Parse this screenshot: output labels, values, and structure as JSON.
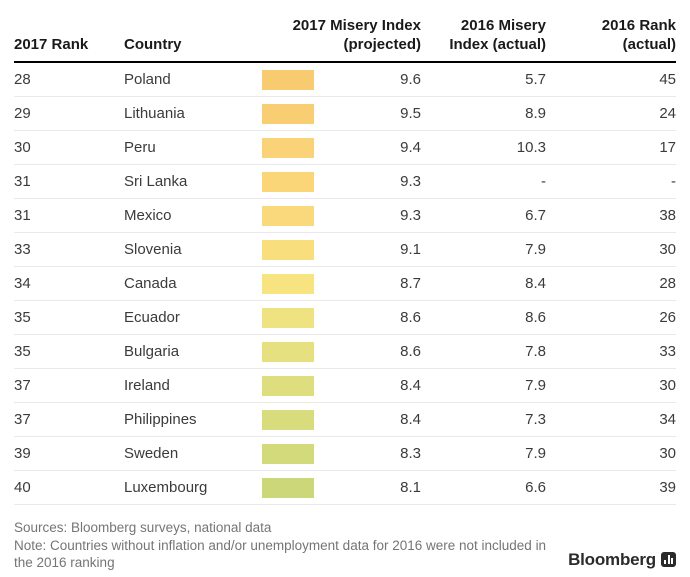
{
  "table": {
    "headers": {
      "rank2017": "2017 Rank",
      "country": "Country",
      "misery2017": "2017 Misery Index\n(projected)",
      "misery2016": "2016 Misery\nIndex (actual)",
      "rank2016": "2016 Rank\n(actual)"
    }
  },
  "chart_data": {
    "type": "table",
    "columns": [
      "2017 Rank",
      "Country",
      "2017 Misery Index (projected)",
      "2016 Misery Index (actual)",
      "2016 Rank (actual)"
    ],
    "bar_encoding": "color swatch shaded from orange (higher misery) to yellow-green (lower misery)",
    "rows": [
      {
        "rank2017": "28",
        "country": "Poland",
        "bar_color": "#f9cb70",
        "misery2017": "9.6",
        "misery2016": "5.7",
        "rank2016": "45"
      },
      {
        "rank2017": "29",
        "country": "Lithuania",
        "bar_color": "#f9ce73",
        "misery2017": "9.5",
        "misery2016": "8.9",
        "rank2016": "24"
      },
      {
        "rank2017": "30",
        "country": "Peru",
        "bar_color": "#fad277",
        "misery2017": "9.4",
        "misery2016": "10.3",
        "rank2016": "17"
      },
      {
        "rank2017": "31",
        "country": "Sri Lanka",
        "bar_color": "#fad679",
        "misery2017": "9.3",
        "misery2016": "-",
        "rank2016": "-"
      },
      {
        "rank2017": "31",
        "country": "Mexico",
        "bar_color": "#f9d97b",
        "misery2017": "9.3",
        "misery2016": "6.7",
        "rank2016": "38"
      },
      {
        "rank2017": "33",
        "country": "Slovenia",
        "bar_color": "#f9de7e",
        "misery2017": "9.1",
        "misery2016": "7.9",
        "rank2016": "30"
      },
      {
        "rank2017": "34",
        "country": "Canada",
        "bar_color": "#f7e380",
        "misery2017": "8.7",
        "misery2016": "8.4",
        "rank2016": "28"
      },
      {
        "rank2017": "35",
        "country": "Ecuador",
        "bar_color": "#efe281",
        "misery2017": "8.6",
        "misery2016": "8.6",
        "rank2016": "26"
      },
      {
        "rank2017": "35",
        "country": "Bulgaria",
        "bar_color": "#e7e080",
        "misery2017": "8.6",
        "misery2016": "7.8",
        "rank2016": "33"
      },
      {
        "rank2017": "37",
        "country": "Ireland",
        "bar_color": "#dfde7f",
        "misery2017": "8.4",
        "misery2016": "7.9",
        "rank2016": "30"
      },
      {
        "rank2017": "37",
        "country": "Philippines",
        "bar_color": "#d8dc7d",
        "misery2017": "8.4",
        "misery2016": "7.3",
        "rank2016": "34"
      },
      {
        "rank2017": "39",
        "country": "Sweden",
        "bar_color": "#d2da7c",
        "misery2017": "8.3",
        "misery2016": "7.9",
        "rank2016": "30"
      },
      {
        "rank2017": "40",
        "country": "Luxembourg",
        "bar_color": "#cbd779",
        "misery2017": "8.1",
        "misery2016": "6.6",
        "rank2016": "39"
      }
    ]
  },
  "footer": {
    "sources": "Sources: Bloomberg surveys, national data",
    "note": "Note: Countries without inflation and/or unemployment data for 2016 were not included in the 2016 ranking",
    "brand": "Bloomberg"
  },
  "colors": {
    "header_text": "#1a1a1a",
    "cell_text": "#3b3b3b",
    "header_rule": "#000000",
    "row_separator": "#e9e9e9",
    "footer_text": "#757575",
    "brand": "#2b2b2b",
    "background": "#ffffff"
  }
}
